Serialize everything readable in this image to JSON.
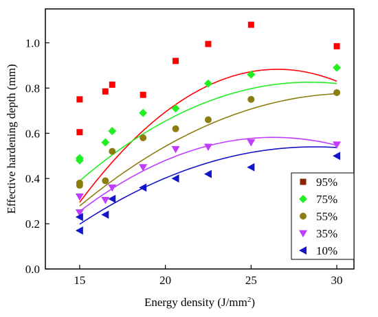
{
  "chart_data": {
    "type": "scatter",
    "xlabel": "Energy density (J/mm",
    "xlabel_superscript": "2",
    "xlabel_suffix": ")",
    "ylabel": "Effective hardening depth (mm)",
    "xlim": [
      13,
      31
    ],
    "ylim": [
      0,
      1.15
    ],
    "xticks": [
      15,
      20,
      25,
      30
    ],
    "yticks": [
      0.0,
      0.2,
      0.4,
      0.6,
      0.8,
      1.0
    ],
    "ytick_labels": [
      "0.0",
      "0.2",
      "0.4",
      "0.6",
      "0.8",
      "1.0"
    ],
    "grid": false,
    "legend_position": "bottom-right",
    "series": [
      {
        "name": "95%",
        "marker": "square",
        "color": "#ff0000",
        "legend_color": "#8b2500",
        "points": [
          [
            15,
            0.75
          ],
          [
            15,
            0.605
          ],
          [
            16.5,
            0.785
          ],
          [
            16.9,
            0.815
          ],
          [
            18.7,
            0.77
          ],
          [
            20.6,
            0.92
          ],
          [
            22.5,
            0.995
          ],
          [
            25,
            1.08
          ],
          [
            30,
            0.985
          ]
        ],
        "fit": {
          "x_range": [
            15,
            30
          ],
          "coef": [
            -2.23,
            0.2346,
            -0.00442
          ]
        }
      },
      {
        "name": "75%",
        "marker": "diamond",
        "color": "#22ee22",
        "points": [
          [
            15,
            0.48
          ],
          [
            15,
            0.49
          ],
          [
            16.5,
            0.56
          ],
          [
            16.9,
            0.61
          ],
          [
            18.7,
            0.69
          ],
          [
            20.6,
            0.71
          ],
          [
            22.5,
            0.82
          ],
          [
            25,
            0.86
          ],
          [
            30,
            0.89
          ]
        ],
        "fit": {
          "x_range": [
            15,
            30
          ],
          "coef": [
            -1.13,
            0.1376,
            -0.00242
          ]
        }
      },
      {
        "name": "55%",
        "marker": "circle",
        "color": "#8b7d10",
        "points": [
          [
            15,
            0.37
          ],
          [
            15,
            0.38
          ],
          [
            16.5,
            0.39
          ],
          [
            16.9,
            0.52
          ],
          [
            18.7,
            0.58
          ],
          [
            20.6,
            0.62
          ],
          [
            22.5,
            0.66
          ],
          [
            25,
            0.75
          ],
          [
            30,
            0.78
          ]
        ],
        "fit": {
          "x_range": [
            15,
            30
          ],
          "coef": [
            -1.1,
            0.1213,
            -0.00196
          ]
        }
      },
      {
        "name": "35%",
        "marker": "triangle-down",
        "color": "#c03cff",
        "points": [
          [
            15,
            0.32
          ],
          [
            15,
            0.25
          ],
          [
            16.5,
            0.305
          ],
          [
            16.9,
            0.36
          ],
          [
            18.7,
            0.45
          ],
          [
            20.6,
            0.53
          ],
          [
            22.5,
            0.54
          ],
          [
            25,
            0.56
          ],
          [
            30,
            0.55
          ]
        ],
        "fit": {
          "x_range": [
            15,
            30
          ],
          "coef": [
            -1.19,
            0.1347,
            -0.00256
          ]
        }
      },
      {
        "name": "10%",
        "marker": "triangle-left",
        "color": "#1414c8",
        "points": [
          [
            15,
            0.17
          ],
          [
            15,
            0.23
          ],
          [
            16.5,
            0.24
          ],
          [
            16.9,
            0.31
          ],
          [
            18.7,
            0.36
          ],
          [
            20.6,
            0.4
          ],
          [
            22.5,
            0.42
          ],
          [
            25,
            0.45
          ],
          [
            30,
            0.5
          ]
        ],
        "fit": {
          "x_range": [
            15,
            30
          ],
          "coef": [
            -0.96,
            0.1045,
            -0.00182
          ]
        }
      }
    ]
  }
}
